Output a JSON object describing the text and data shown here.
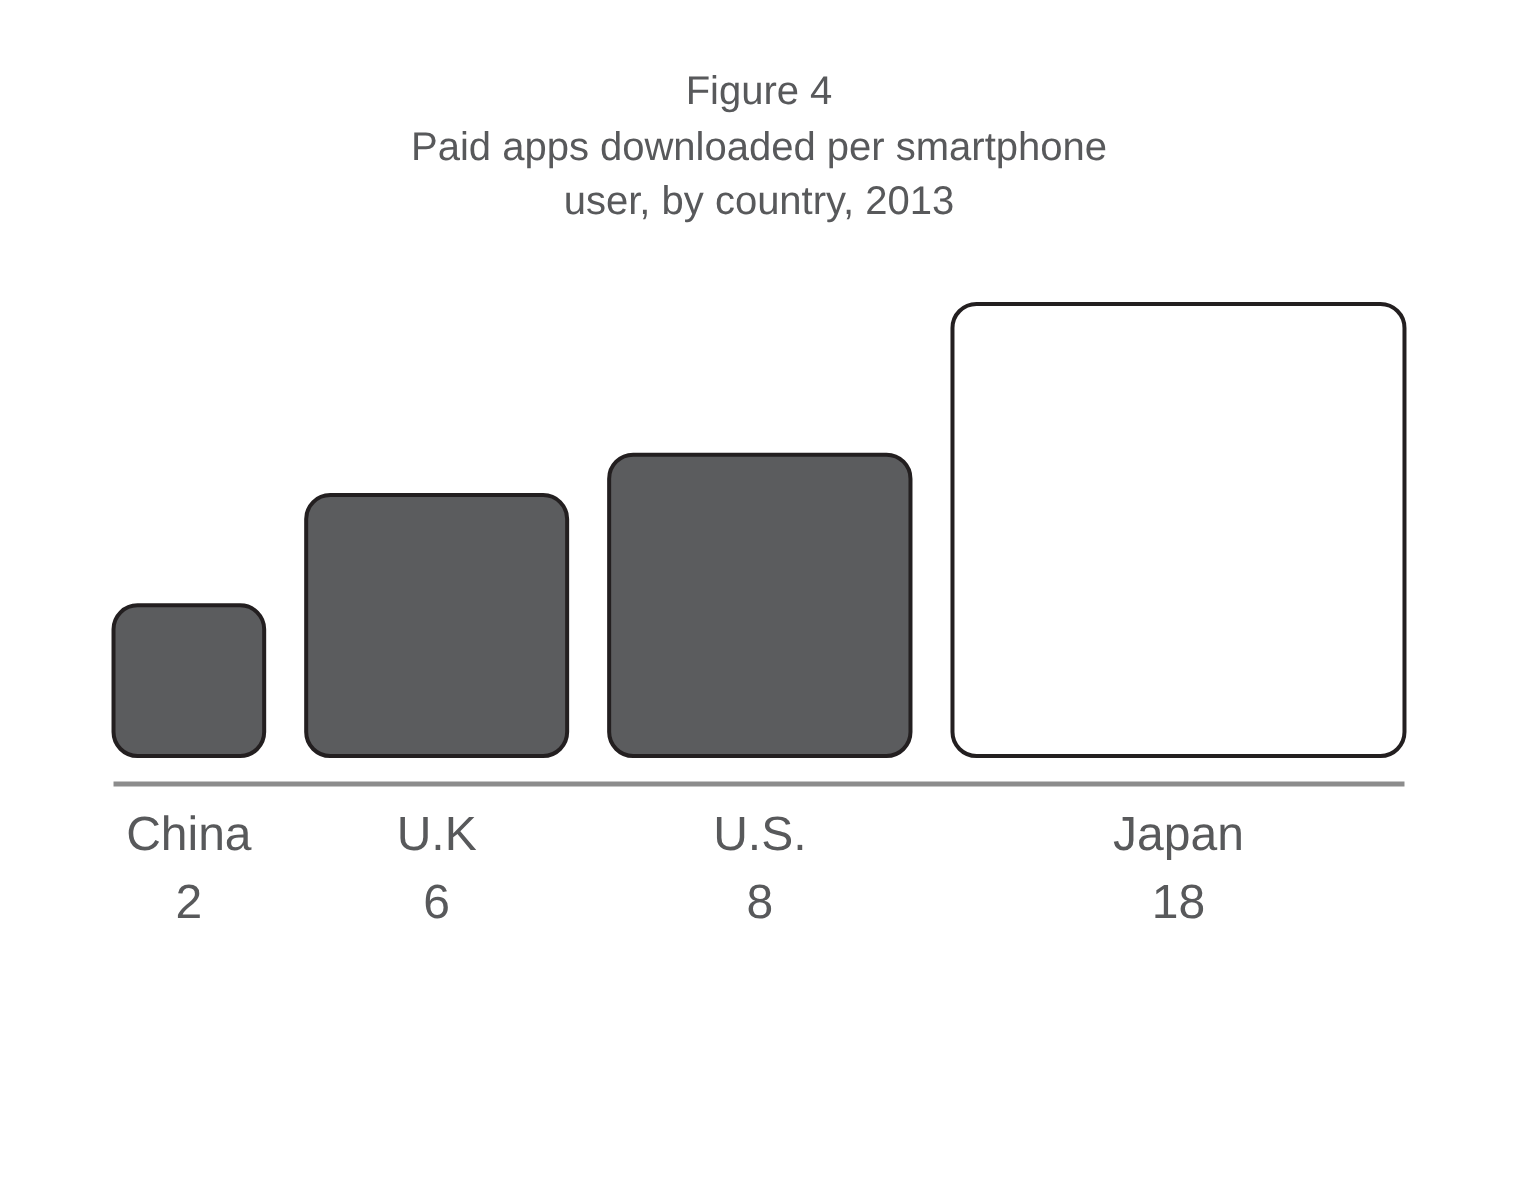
{
  "chart_data": {
    "type": "other",
    "title": "Figure 4",
    "subtitle": "Paid apps downloaded per smartphone user, by country, 2013",
    "categories": [
      "China",
      "U.K",
      "U.S.",
      "Japan"
    ],
    "values": [
      2,
      6,
      8,
      18
    ],
    "colors": [
      "#5b5c5e",
      "#5b5c5e",
      "#5b5c5e",
      "#ffffff"
    ],
    "data_labels": true
  }
}
